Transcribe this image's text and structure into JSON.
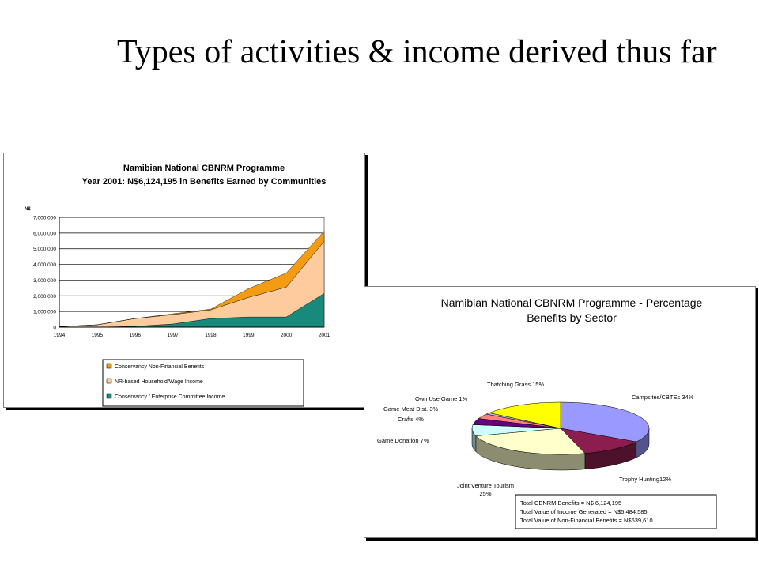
{
  "slide": {
    "title": "Types of activities & income derived thus far"
  },
  "colors": {
    "conservancy_non_financial": "#F39C12",
    "nr_based_household": "#FDCB9E",
    "conservancy_enterprise": "#178A7C",
    "plot_bg": "#ffffff",
    "pie_campsites": "#9999FF",
    "pie_trophy": "#8B1E4F",
    "pie_jv": "#FFFFCC",
    "pie_game_donation": "#CCFFFF",
    "pie_crafts": "#66007A",
    "pie_meat": "#FF8080",
    "pie_own_use": "#C0C0C0",
    "pie_thatch": "#FFFF00"
  },
  "chart_data": [
    {
      "type": "area",
      "stacked": true,
      "title": "Namibian National CBNRM Programme",
      "subtitle": "Year 2001: N$6,124,195 in Benefits Earned by Communities",
      "ylabel": "N$",
      "x": [
        1994,
        1995,
        1996,
        1997,
        1998,
        1999,
        2000,
        2001
      ],
      "x_tick_labels": [
        "1994",
        "1995",
        "1996",
        "1997",
        "1998",
        "1999",
        "2000",
        "2001"
      ],
      "ylim": [
        0,
        7000000
      ],
      "y_ticks": [
        0,
        1000000,
        2000000,
        3000000,
        4000000,
        5000000,
        6000000,
        7000000
      ],
      "y_tick_labels": [
        "0",
        "1,000,000",
        "2,000,000",
        "3,000,000",
        "4,000,000",
        "5,000,000",
        "6,000,000",
        "7,000,000"
      ],
      "series": [
        {
          "name": "Conservancy / Enterprise Committee Income",
          "color": "#178A7C",
          "values": [
            0,
            0,
            50000,
            200000,
            550000,
            650000,
            650000,
            2150000
          ]
        },
        {
          "name": "NR-based Household/Wage Income",
          "color": "#FDCB9E",
          "values": [
            30000,
            150000,
            500000,
            600000,
            550000,
            1250000,
            1900000,
            3330000
          ]
        },
        {
          "name": "Conservancy Non-Financial Benefits",
          "color": "#F39C12",
          "values": [
            0,
            0,
            0,
            50000,
            50000,
            550000,
            900000,
            640000
          ]
        }
      ],
      "legend": {
        "position": "bottom",
        "entries": [
          {
            "label": "Conservancy Non-Financial Benefits",
            "color": "#F39C12"
          },
          {
            "label": "NR-based Household/Wage Income",
            "color": "#FDCB9E"
          },
          {
            "label": "Conservancy / Enterprise Committee Income",
            "color": "#178A7C"
          }
        ]
      },
      "grid": true
    },
    {
      "type": "pie",
      "title": "Namibian National CBNRM Programme - Percentage",
      "subtitle": "Benefits by Sector",
      "slices": [
        {
          "label": "Campsites/CBTEs 34%",
          "value": 34,
          "color": "#9999FF"
        },
        {
          "label": "Trophy Hunting12%",
          "value": 12,
          "color": "#8B1E4F"
        },
        {
          "label": "Joint Venture Tourism",
          "label2": "25%",
          "value": 25,
          "color": "#FFFFCC"
        },
        {
          "label": "Game Donation 7%",
          "value": 7,
          "color": "#CCFFFF"
        },
        {
          "label": "Crafts 4%",
          "value": 4,
          "color": "#66007A"
        },
        {
          "label": "Game Meat Dist. 3%",
          "value": 3,
          "color": "#FF8080"
        },
        {
          "label": "Own Use Game 1%",
          "value": 1,
          "color": "#C0C0C0"
        },
        {
          "label": "Thatching Grass 15%",
          "value": 15,
          "color": "#FFFF00"
        }
      ],
      "totals": [
        "Total CBNRM Benefits = N$ 6,124,195",
        "Total Value of Income Generated = N$5,484,585",
        "Total Value of Non-Financial Benefits = N$639,610"
      ]
    }
  ]
}
